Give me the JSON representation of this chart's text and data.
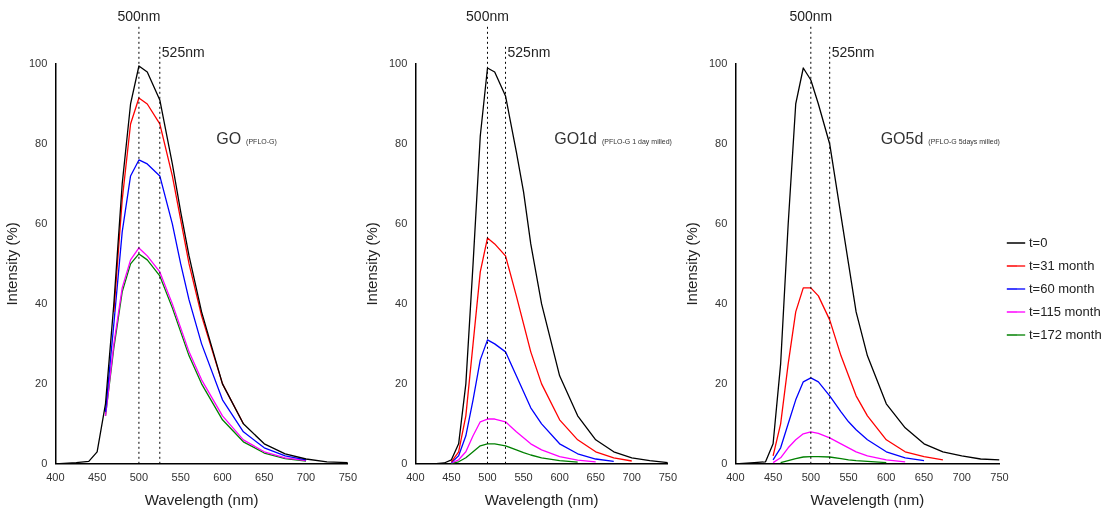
{
  "chart_data": [
    {
      "type": "line",
      "xlabel": "Wavelength (nm)",
      "ylabel": "Intensity (%)",
      "annotations": [
        "GO",
        "(PFLO-G)"
      ],
      "xlim": [
        400,
        750
      ],
      "xticks": [
        400,
        450,
        500,
        550,
        600,
        650,
        700,
        750
      ],
      "ylim": [
        0,
        100
      ],
      "yticks": [
        0,
        20,
        40,
        60,
        80,
        100
      ],
      "ref_lines": [
        {
          "axis": "x",
          "value": 500,
          "label": "500nm",
          "line_style": "dotted"
        },
        {
          "axis": "x",
          "value": 525,
          "label": "525nm",
          "line_style": "dotted"
        }
      ],
      "x": [
        400,
        425,
        440,
        450,
        460,
        470,
        480,
        490,
        500,
        510,
        525,
        540,
        550,
        560,
        575,
        600,
        625,
        650,
        675,
        700,
        725,
        750
      ],
      "series": [
        {
          "color": "#000000",
          "values": [
            0,
            0.3,
            0.6,
            3,
            15,
            40,
            70,
            90,
            99.5,
            98,
            91,
            75,
            63,
            52,
            38,
            20,
            10,
            5,
            2.5,
            1.2,
            0.5,
            0.3
          ]
        },
        {
          "color": "#ff0000",
          "values": [
            null,
            null,
            null,
            null,
            null,
            38,
            66,
            85,
            91.5,
            90,
            85,
            72,
            61,
            50,
            37,
            20,
            10,
            null,
            null,
            null,
            null,
            null
          ]
        },
        {
          "color": "#0000ff",
          "values": [
            null,
            null,
            null,
            null,
            13,
            35,
            58,
            72,
            76,
            75,
            72,
            60,
            50,
            41,
            30,
            16,
            8,
            4,
            2,
            1,
            null,
            null
          ]
        },
        {
          "color": "#ff00ff",
          "values": [
            null,
            null,
            null,
            null,
            12,
            30,
            44,
            51,
            54,
            52,
            48,
            40,
            34,
            28,
            21,
            12,
            6,
            3,
            1.5,
            0.8,
            null,
            null
          ]
        },
        {
          "color": "#008000",
          "values": [
            null,
            null,
            null,
            null,
            12,
            29,
            43,
            50,
            52.5,
            51,
            47,
            39,
            33,
            27,
            20,
            11,
            5.5,
            2.7,
            1.3,
            0.7,
            null,
            null
          ]
        }
      ]
    },
    {
      "type": "line",
      "xlabel": "Wavelength (nm)",
      "ylabel": "Intensity (%)",
      "annotations": [
        "GO1d",
        "(PFLO-G 1 day milled)"
      ],
      "xlim": [
        400,
        750
      ],
      "xticks": [
        400,
        450,
        500,
        550,
        600,
        650,
        700,
        750
      ],
      "ylim": [
        0,
        100
      ],
      "yticks": [
        0,
        20,
        40,
        60,
        80,
        100
      ],
      "ref_lines": [
        {
          "axis": "x",
          "value": 500,
          "label": "500nm",
          "line_style": "dotted"
        },
        {
          "axis": "x",
          "value": 525,
          "label": "525nm",
          "line_style": "dotted"
        }
      ],
      "x": [
        400,
        425,
        440,
        450,
        460,
        470,
        480,
        490,
        500,
        510,
        525,
        540,
        550,
        560,
        575,
        600,
        625,
        650,
        675,
        700,
        725,
        750
      ],
      "series": [
        {
          "color": "#000000",
          "values": [
            0,
            0,
            0.2,
            1,
            5,
            20,
            50,
            82,
            99,
            98,
            92,
            78,
            68,
            55,
            40,
            22,
            12,
            6,
            3,
            1.5,
            0.8,
            0.3
          ]
        },
        {
          "color": "#ff0000",
          "values": [
            null,
            null,
            null,
            0.5,
            3,
            12,
            30,
            48,
            56.5,
            55,
            52,
            42,
            35,
            28,
            20,
            11,
            6,
            3,
            1.5,
            0.7,
            null,
            null
          ]
        },
        {
          "color": "#0000ff",
          "values": [
            null,
            null,
            null,
            0.3,
            2,
            7,
            16,
            26,
            31,
            30,
            28,
            22,
            18,
            14,
            10,
            5,
            2.5,
            1.2,
            0.6,
            null,
            null,
            null
          ]
        },
        {
          "color": "#ff00ff",
          "values": [
            null,
            null,
            null,
            0.2,
            1,
            3,
            7,
            10.5,
            11.2,
            11.2,
            10.5,
            8,
            6.5,
            5,
            3.5,
            1.8,
            0.9,
            0.5,
            null,
            null,
            null,
            null
          ]
        },
        {
          "color": "#008000",
          "values": [
            null,
            null,
            null,
            0.1,
            0.5,
            1.5,
            3,
            4.5,
            5,
            5,
            4.5,
            3.5,
            2.8,
            2.2,
            1.5,
            0.8,
            0.4,
            null,
            null,
            null,
            null,
            null
          ]
        }
      ]
    },
    {
      "type": "line",
      "xlabel": "Wavelength (nm)",
      "ylabel": "Intensity (%)",
      "annotations": [
        "GO5d",
        "(PFLO-G 5days milled)"
      ],
      "xlim": [
        400,
        750
      ],
      "xticks": [
        400,
        450,
        500,
        550,
        600,
        650,
        700,
        750
      ],
      "ylim": [
        0,
        100
      ],
      "yticks": [
        0,
        20,
        40,
        60,
        80,
        100
      ],
      "legend": "right",
      "ref_lines": [
        {
          "axis": "x",
          "value": 500,
          "label": "500nm",
          "line_style": "dotted"
        },
        {
          "axis": "x",
          "value": 525,
          "label": "525nm",
          "line_style": "dotted"
        }
      ],
      "x": [
        400,
        425,
        440,
        450,
        460,
        470,
        480,
        490,
        500,
        510,
        525,
        540,
        550,
        560,
        575,
        600,
        625,
        650,
        675,
        700,
        725,
        750
      ],
      "series": [
        {
          "name": "t=0",
          "color": "#000000",
          "values": [
            0,
            0.3,
            0.5,
            5,
            25,
            60,
            90,
            99,
            96,
            90,
            80,
            62,
            50,
            38,
            27,
            15,
            9,
            5,
            3,
            2,
            1.2,
            1
          ]
        },
        {
          "name": "t=31 month",
          "color": "#ff0000",
          "values": [
            null,
            null,
            null,
            2,
            10,
            25,
            38,
            44,
            44,
            42,
            36,
            27,
            22,
            17,
            12,
            6,
            3,
            1.8,
            1,
            null,
            null,
            null
          ]
        },
        {
          "name": "t=60 month",
          "color": "#0000ff",
          "values": [
            null,
            null,
            null,
            1,
            4,
            10,
            16,
            20.5,
            21.5,
            20.5,
            17,
            13,
            10.5,
            8.5,
            6,
            3,
            1.5,
            0.8,
            null,
            null,
            null,
            null
          ]
        },
        {
          "name": "t=115 month",
          "color": "#ff00ff",
          "values": [
            null,
            null,
            null,
            0.3,
            1.5,
            4,
            6,
            7.5,
            8,
            7.6,
            6.5,
            5,
            4,
            3,
            2,
            1,
            0.5,
            null,
            null,
            null,
            null,
            null
          ]
        },
        {
          "name": "t=172 month",
          "color": "#008000",
          "values": [
            null,
            null,
            null,
            null,
            0.3,
            0.8,
            1.3,
            1.7,
            1.8,
            1.8,
            1.7,
            1.3,
            1,
            0.8,
            0.6,
            0.3,
            null,
            null,
            null,
            null,
            null,
            null
          ]
        }
      ]
    }
  ]
}
